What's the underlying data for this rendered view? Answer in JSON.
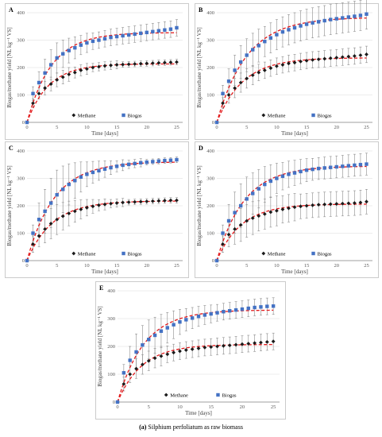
{
  "caption": {
    "tag": "(a)",
    "text": "Silphium perfoliatum as raw biomass"
  },
  "colors": {
    "methane": "#1a1a1a",
    "biogas": "#4472c4",
    "fit": "#e31a1c"
  },
  "chart_data": [
    {
      "panel": "A",
      "type": "scatter",
      "xlabel": "Time [days]",
      "ylabel": "Biogas/methane yield [NL kg⁻¹ VS]",
      "xlim": [
        0,
        26
      ],
      "ylim": [
        0,
        400
      ],
      "xticks": [
        0,
        5,
        10,
        15,
        20,
        25
      ],
      "yticks": [
        0,
        100,
        200,
        300,
        400
      ],
      "legend": {
        "position": "bottom",
        "entries": [
          "Methane",
          "Biogas"
        ]
      },
      "x": [
        0,
        1,
        2,
        3,
        4,
        5,
        6,
        7,
        8,
        9,
        10,
        11,
        12,
        13,
        14,
        15,
        16,
        17,
        18,
        19,
        20,
        21,
        22,
        23,
        24,
        25
      ],
      "series": [
        {
          "name": "Methane",
          "marker": "diamond",
          "values": [
            0,
            70,
            105,
            125,
            140,
            155,
            165,
            175,
            182,
            190,
            195,
            200,
            203,
            206,
            208,
            210,
            211,
            212,
            213,
            214,
            215,
            216,
            217,
            218,
            219,
            220
          ],
          "errors": [
            0,
            15,
            20,
            25,
            25,
            25,
            25,
            25,
            20,
            20,
            20,
            15,
            15,
            15,
            15,
            15,
            10,
            10,
            10,
            10,
            10,
            10,
            10,
            10,
            10,
            10
          ]
        },
        {
          "name": "Biogas",
          "marker": "square",
          "values": [
            0,
            105,
            145,
            180,
            210,
            235,
            250,
            262,
            272,
            282,
            290,
            296,
            300,
            305,
            310,
            313,
            316,
            319,
            322,
            325,
            328,
            331,
            334,
            337,
            340,
            345
          ],
          "errors": [
            0,
            25,
            40,
            50,
            55,
            55,
            50,
            45,
            40,
            35,
            35,
            30,
            30,
            30,
            30,
            30,
            30,
            30,
            30,
            30,
            30,
            30,
            30,
            30,
            30,
            30
          ]
        }
      ]
    },
    {
      "panel": "B",
      "type": "scatter",
      "xlabel": "Time [days]",
      "ylabel": "Biogas/methane yield [NL kg⁻¹ VS]",
      "xlim": [
        0,
        26
      ],
      "ylim": [
        0,
        400
      ],
      "xticks": [
        0,
        5,
        10,
        15,
        20,
        25
      ],
      "yticks": [
        0,
        100,
        200,
        300,
        400
      ],
      "legend": {
        "position": "bottom",
        "entries": [
          "Methane",
          "Biogas"
        ]
      },
      "x": [
        0,
        1,
        2,
        3,
        4,
        5,
        6,
        7,
        8,
        9,
        10,
        11,
        12,
        13,
        14,
        15,
        16,
        17,
        18,
        19,
        20,
        21,
        22,
        23,
        24,
        25
      ],
      "series": [
        {
          "name": "Methane",
          "marker": "diamond",
          "values": [
            0,
            70,
            100,
            125,
            145,
            160,
            172,
            182,
            190,
            198,
            205,
            210,
            215,
            218,
            222,
            225,
            228,
            230,
            232,
            234,
            236,
            238,
            240,
            242,
            245,
            248
          ],
          "errors": [
            0,
            20,
            30,
            35,
            35,
            35,
            35,
            30,
            30,
            30,
            30,
            30,
            30,
            30,
            30,
            30,
            30,
            30,
            30,
            30,
            30,
            30,
            30,
            30,
            30,
            30
          ]
        },
        {
          "name": "Biogas",
          "marker": "square",
          "values": [
            0,
            105,
            150,
            190,
            220,
            245,
            265,
            280,
            295,
            308,
            320,
            330,
            338,
            345,
            352,
            358,
            363,
            367,
            371,
            375,
            378,
            381,
            384,
            387,
            390,
            395
          ],
          "errors": [
            0,
            30,
            45,
            55,
            60,
            60,
            60,
            60,
            55,
            55,
            55,
            55,
            55,
            55,
            55,
            55,
            55,
            55,
            55,
            55,
            55,
            55,
            55,
            55,
            55,
            55
          ]
        }
      ]
    },
    {
      "panel": "C",
      "type": "scatter",
      "xlabel": "Time [days]",
      "ylabel": "Biogas/methane yield [NL kg⁻¹ VS]",
      "xlim": [
        0,
        26
      ],
      "ylim": [
        0,
        400
      ],
      "xticks": [
        0,
        5,
        10,
        15,
        20,
        25
      ],
      "yticks": [
        0,
        100,
        200,
        300,
        400
      ],
      "legend": {
        "position": "bottom",
        "entries": [
          "Methane",
          "Biogas"
        ]
      },
      "x": [
        0,
        1,
        2,
        3,
        4,
        5,
        6,
        7,
        8,
        9,
        10,
        11,
        12,
        13,
        14,
        15,
        16,
        17,
        18,
        19,
        20,
        21,
        22,
        23,
        24,
        25
      ],
      "series": [
        {
          "name": "Methane",
          "marker": "diamond",
          "values": [
            0,
            60,
            90,
            115,
            135,
            150,
            162,
            172,
            180,
            187,
            193,
            198,
            202,
            205,
            208,
            210,
            212,
            213,
            214,
            215,
            216,
            217,
            218,
            219,
            220,
            220
          ],
          "errors": [
            0,
            30,
            40,
            50,
            55,
            55,
            50,
            45,
            40,
            35,
            30,
            25,
            20,
            20,
            15,
            15,
            15,
            10,
            10,
            10,
            10,
            10,
            10,
            10,
            10,
            10
          ]
        },
        {
          "name": "Biogas",
          "marker": "square",
          "values": [
            0,
            100,
            150,
            180,
            210,
            240,
            260,
            278,
            292,
            305,
            315,
            322,
            328,
            334,
            339,
            344,
            348,
            351,
            354,
            357,
            359,
            361,
            363,
            365,
            366,
            368
          ],
          "errors": [
            0,
            30,
            60,
            80,
            90,
            90,
            85,
            75,
            65,
            55,
            45,
            40,
            35,
            30,
            25,
            20,
            20,
            15,
            15,
            15,
            10,
            10,
            10,
            10,
            10,
            10
          ]
        }
      ]
    },
    {
      "panel": "D",
      "type": "scatter",
      "xlabel": "Time [days]",
      "ylabel": "Biogas/methane yield [NL kg⁻¹ VS]",
      "xlim": [
        0,
        26
      ],
      "ylim": [
        0,
        400
      ],
      "xticks": [
        0,
        5,
        10,
        15,
        20,
        25
      ],
      "yticks": [
        0,
        100,
        200,
        300,
        400
      ],
      "legend": {
        "position": "bottom",
        "entries": [
          "Methane",
          "Biogas"
        ]
      },
      "x": [
        0,
        1,
        2,
        3,
        4,
        5,
        6,
        7,
        8,
        9,
        10,
        11,
        12,
        13,
        14,
        15,
        16,
        17,
        18,
        19,
        20,
        21,
        22,
        23,
        24,
        25
      ],
      "series": [
        {
          "name": "Methane",
          "marker": "diamond",
          "values": [
            0,
            60,
            95,
            115,
            130,
            145,
            155,
            163,
            170,
            177,
            182,
            187,
            191,
            195,
            198,
            200,
            202,
            204,
            205,
            206,
            207,
            208,
            209,
            210,
            212,
            215
          ],
          "errors": [
            0,
            30,
            45,
            55,
            60,
            60,
            60,
            55,
            55,
            55,
            55,
            50,
            50,
            50,
            45,
            45,
            45,
            45,
            45,
            45,
            45,
            45,
            45,
            45,
            45,
            45
          ]
        },
        {
          "name": "Biogas",
          "marker": "square",
          "values": [
            0,
            100,
            145,
            175,
            200,
            225,
            245,
            262,
            278,
            290,
            300,
            308,
            315,
            320,
            325,
            330,
            333,
            336,
            338,
            340,
            342,
            344,
            346,
            348,
            350,
            352
          ],
          "errors": [
            0,
            30,
            60,
            75,
            80,
            80,
            75,
            70,
            65,
            60,
            55,
            50,
            48,
            46,
            44,
            42,
            40,
            40,
            40,
            40,
            40,
            40,
            40,
            40,
            40,
            40
          ]
        }
      ]
    },
    {
      "panel": "E",
      "type": "scatter",
      "xlabel": "Time [days]",
      "ylabel": "Biogas/methane yield [NL kg⁻¹ VS]",
      "xlim": [
        0,
        26
      ],
      "ylim": [
        0,
        400
      ],
      "xticks": [
        0,
        5,
        10,
        15,
        20,
        25
      ],
      "yticks": [
        0,
        100,
        200,
        300,
        400
      ],
      "legend": {
        "position": "bottom",
        "entries": [
          "Methane",
          "Biogas"
        ]
      },
      "x": [
        0,
        1,
        2,
        3,
        4,
        5,
        6,
        7,
        8,
        9,
        10,
        11,
        12,
        13,
        14,
        15,
        16,
        17,
        18,
        19,
        20,
        21,
        22,
        23,
        24,
        25
      ],
      "series": [
        {
          "name": "Methane",
          "marker": "diamond",
          "values": [
            0,
            65,
            100,
            120,
            135,
            148,
            158,
            165,
            172,
            178,
            183,
            187,
            190,
            193,
            196,
            198,
            200,
            202,
            204,
            206,
            208,
            210,
            212,
            214,
            216,
            218
          ],
          "errors": [
            0,
            25,
            30,
            35,
            35,
            35,
            35,
            35,
            30,
            30,
            30,
            30,
            30,
            30,
            30,
            30,
            30,
            30,
            30,
            30,
            30,
            30,
            30,
            30,
            30,
            30
          ]
        },
        {
          "name": "Biogas",
          "marker": "square",
          "values": [
            0,
            105,
            150,
            180,
            205,
            225,
            240,
            255,
            267,
            278,
            288,
            296,
            302,
            308,
            313,
            317,
            321,
            325,
            328,
            331,
            334,
            337,
            340,
            342,
            344,
            345
          ],
          "errors": [
            0,
            30,
            50,
            65,
            70,
            70,
            65,
            60,
            55,
            50,
            45,
            40,
            38,
            36,
            34,
            32,
            30,
            30,
            30,
            30,
            30,
            30,
            30,
            30,
            30,
            30
          ]
        }
      ]
    }
  ]
}
